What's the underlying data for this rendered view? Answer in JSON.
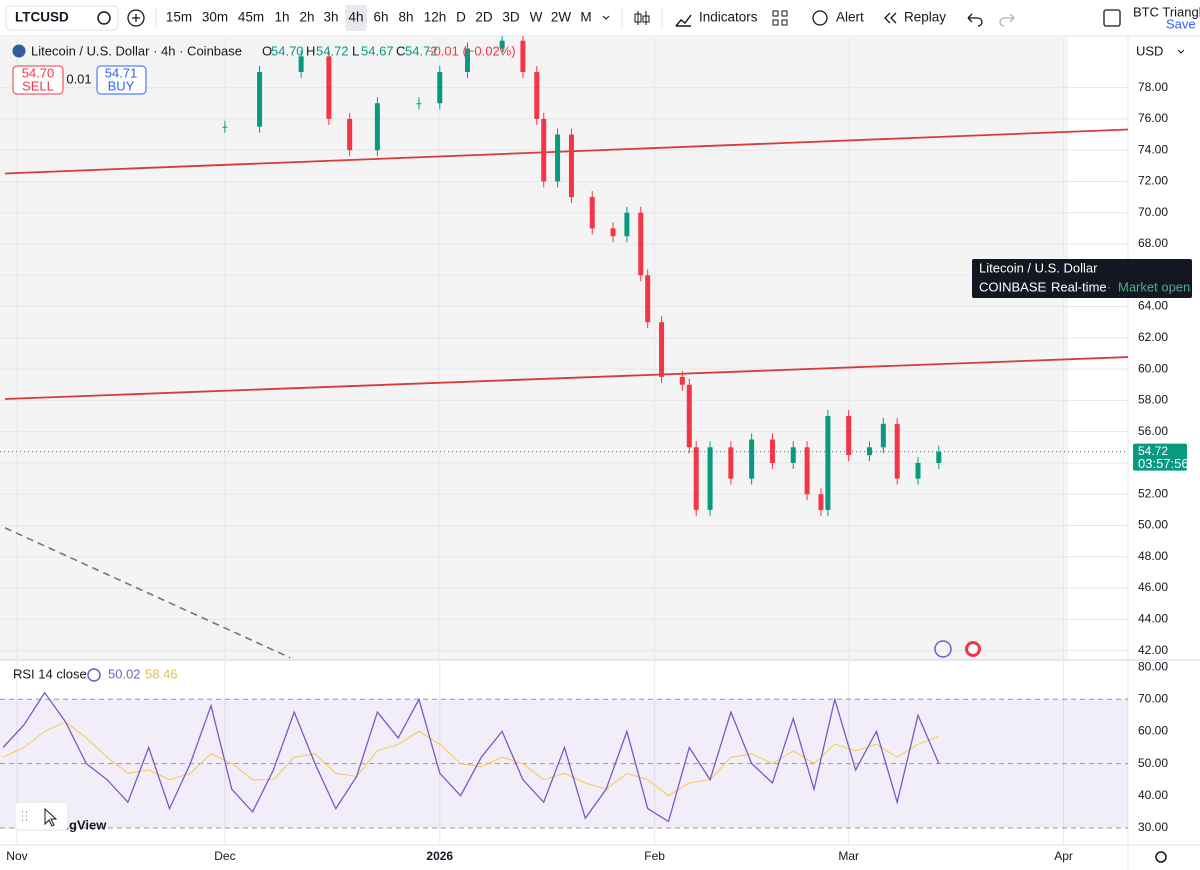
{
  "toolbar": {
    "symbol": "LTCUSD",
    "intervals": [
      "15m",
      "30m",
      "45m",
      "1h",
      "2h",
      "3h",
      "4h",
      "6h",
      "8h",
      "12h",
      "D",
      "2D",
      "3D",
      "W",
      "2W",
      "M"
    ],
    "active_interval": "4h",
    "indicators": "Indicators",
    "alert": "Alert",
    "replay": "Replay",
    "layout_name": "BTC Triangle",
    "save": "Save"
  },
  "legend": {
    "title": "Litecoin / U.S. Dollar · 4h · Coinbase",
    "ohlc": [
      {
        "label": "O",
        "value": "54.70"
      },
      {
        "label": "H",
        "value": "54.72"
      },
      {
        "label": "L",
        "value": "54.67"
      },
      {
        "label": "C",
        "value": "54.72"
      }
    ],
    "change": "−0.01 (−0.02%)",
    "sell_price": "54.70",
    "sell": "SELL",
    "spread": "0.01",
    "buy_price": "54.71",
    "buy": "BUY"
  },
  "tooltip": {
    "name": "Litecoin / U.S. Dollar",
    "exchange": "COINBASE",
    "feed": "Real-time",
    "status": "Market open"
  },
  "currency": "USD",
  "logo": "TradingView",
  "chart_data": [
    {
      "type": "candlestick",
      "x": [
        30,
        35,
        41,
        45,
        48,
        52,
        58,
        61,
        65,
        70,
        73,
        75,
        76,
        78,
        80,
        83,
        86,
        88,
        90,
        91,
        93,
        96,
        97,
        98,
        100,
        103,
        106,
        109,
        112,
        114,
        116,
        117,
        120,
        123,
        125,
        127,
        130,
        133
      ],
      "values": [
        75.5,
        79,
        80,
        76,
        74,
        77,
        77,
        79,
        80.5,
        81,
        79,
        76,
        72,
        75,
        71,
        69,
        68.5,
        70,
        66,
        63,
        59.5,
        59,
        55,
        51,
        55,
        53,
        55.5,
        54,
        55,
        52,
        51,
        57,
        54.5,
        55,
        56.5,
        53,
        54,
        54.72
      ],
      "up_color": "#089981",
      "down_color": "#f23645",
      "xlim": [
        -2.45,
        160.3
      ],
      "xticks": [
        {
          "value": 0,
          "label": "Nov"
        },
        {
          "value": 30,
          "label": "Dec"
        },
        {
          "value": 61,
          "label": "2026"
        },
        {
          "value": 92,
          "label": "Feb"
        },
        {
          "value": 120,
          "label": "Mar"
        },
        {
          "value": 151,
          "label": "Apr"
        }
      ],
      "ylim": [
        41.4,
        81.3
      ],
      "yticks": [
        {
          "value": 42,
          "label": "42.00"
        },
        {
          "value": 44,
          "label": "44.00"
        },
        {
          "value": 46,
          "label": "46.00"
        },
        {
          "value": 48,
          "label": "48.00"
        },
        {
          "value": 50,
          "label": "50.00"
        },
        {
          "value": 52,
          "label": "52.00"
        },
        {
          "value": 54,
          "label": "54.00"
        },
        {
          "value": 56,
          "label": "56.00"
        },
        {
          "value": 58,
          "label": "58.00"
        },
        {
          "value": 60,
          "label": "60.00"
        },
        {
          "value": 62,
          "label": "62.00"
        },
        {
          "value": 64,
          "label": "64.00"
        },
        {
          "value": 66,
          "label": "66.00"
        },
        {
          "value": 68,
          "label": "68.00"
        },
        {
          "value": 70,
          "label": "70.00"
        },
        {
          "value": 72,
          "label": "72.00"
        },
        {
          "value": 74,
          "label": "74.00"
        },
        {
          "value": 76,
          "label": "76.00"
        },
        {
          "value": 78,
          "label": "78.00"
        }
      ],
      "grid": true,
      "last": 54.72,
      "countdown": "03:57:56",
      "lines": [
        {
          "color": "#d93a3a",
          "dashed": false,
          "x": [
            -1.73,
            160.3
          ],
          "y": [
            72.51,
            75.32
          ]
        },
        {
          "color": "#d93a3a",
          "dashed": false,
          "x": [
            -1.73,
            160.3
          ],
          "y": [
            58.09,
            60.77
          ]
        },
        {
          "color": "#777777",
          "dashed": true,
          "x": [
            -1.73,
            39.4
          ],
          "y": [
            49.85,
            41.55
          ]
        }
      ]
    },
    {
      "type": "line",
      "title": "RSI 14 close",
      "x": [
        -2,
        1,
        4,
        7,
        10,
        13,
        16,
        19,
        22,
        25,
        28,
        31,
        34,
        37,
        40,
        43,
        46,
        49,
        52,
        55,
        58,
        61,
        64,
        67,
        70,
        73,
        76,
        79,
        82,
        85,
        88,
        91,
        94,
        97,
        100,
        103,
        106,
        109,
        112,
        115,
        118,
        121,
        124,
        127,
        130,
        133
      ],
      "series": [
        {
          "name": "50.02",
          "color": "#7e57c2",
          "values": [
            55,
            62,
            72,
            63,
            50,
            45,
            38,
            55,
            36,
            50,
            68,
            42,
            35,
            48,
            66,
            50,
            36,
            46,
            66,
            58,
            70,
            47,
            40,
            52,
            60,
            45,
            38,
            55,
            33,
            42,
            60,
            36,
            32,
            55,
            45,
            66,
            50,
            44,
            64,
            42,
            70,
            48,
            60,
            38,
            65,
            50.02
          ]
        },
        {
          "name": "58.46",
          "color": "#f7c948",
          "values": [
            52,
            55,
            60,
            63,
            58,
            52,
            47,
            48,
            45,
            47,
            53,
            50,
            45,
            45,
            52,
            53,
            47,
            46,
            54,
            56,
            60,
            56,
            50,
            49,
            52,
            50,
            45,
            47,
            44,
            42,
            47,
            45,
            40,
            44,
            45,
            52,
            53,
            50,
            54,
            50,
            56,
            54,
            56,
            52,
            56,
            58.46
          ]
        }
      ],
      "xlim": [
        -2.45,
        160.3
      ],
      "ylim": [
        24.7,
        82.2
      ],
      "yticks": [
        {
          "value": 30,
          "label": "30.00"
        },
        {
          "value": 40,
          "label": "40.00"
        },
        {
          "value": 50,
          "label": "50.00"
        },
        {
          "value": 60,
          "label": "60.00"
        },
        {
          "value": 70,
          "label": "70.00"
        },
        {
          "value": 80,
          "label": "80.00"
        }
      ],
      "band": [
        30,
        70
      ],
      "levels": [
        30,
        50,
        70
      ]
    }
  ]
}
